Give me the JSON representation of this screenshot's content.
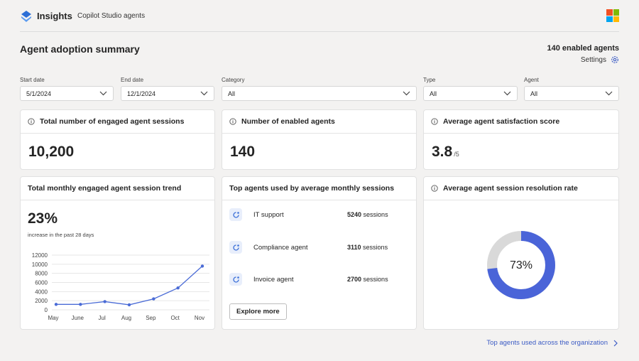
{
  "header": {
    "app_name": "Insights",
    "app_subtitle": "Copilot Studio agents"
  },
  "page": {
    "title": "Agent adoption summary",
    "enabled_agents": "140 enabled agents",
    "settings_label": "Settings"
  },
  "filters": {
    "start_date": {
      "label": "Start date",
      "value": "5/1/2024"
    },
    "end_date": {
      "label": "End date",
      "value": "12/1/2024"
    },
    "category": {
      "label": "Category",
      "value": "All"
    },
    "type": {
      "label": "Type",
      "value": "All"
    },
    "agent": {
      "label": "Agent",
      "value": "All"
    }
  },
  "kpis": {
    "sessions": {
      "title": "Total number of engaged agent sessions",
      "value": "10,200"
    },
    "enabled": {
      "title": "Number of enabled agents",
      "value": "140"
    },
    "satisfaction": {
      "title": "Average agent satisfaction score",
      "value": "3.8",
      "suffix": "/5"
    }
  },
  "trend": {
    "title": "Total monthly engaged agent session trend",
    "percent": "23%",
    "subtitle": "increase in the past 28 days"
  },
  "top_agents": {
    "title": "Top agents used by average monthly sessions",
    "items": [
      {
        "name": "IT support",
        "count": "5240",
        "unit": "sessions"
      },
      {
        "name": "Compliance agent",
        "count": "3110",
        "unit": "sessions"
      },
      {
        "name": "Invoice agent",
        "count": "2700",
        "unit": "sessions"
      }
    ],
    "button": "Explore more"
  },
  "resolution": {
    "title": "Average agent session resolution rate",
    "value": "73%",
    "rate": 0.73
  },
  "footer_link": "Top agents used across the organization",
  "colors": {
    "accent": "#4a64d8",
    "donut_rest": "#d9d9d9",
    "line": "#4a6bd6"
  },
  "chart_data": {
    "type": "line",
    "categories": [
      "May",
      "June",
      "Jul",
      "Aug",
      "Sep",
      "Oct",
      "Nov"
    ],
    "values": [
      1200,
      1200,
      1800,
      1100,
      2400,
      4800,
      9600
    ],
    "yticks": [
      0,
      2000,
      4000,
      6000,
      8000,
      10000,
      12000
    ],
    "ylim": [
      0,
      12000
    ],
    "grid": true
  }
}
